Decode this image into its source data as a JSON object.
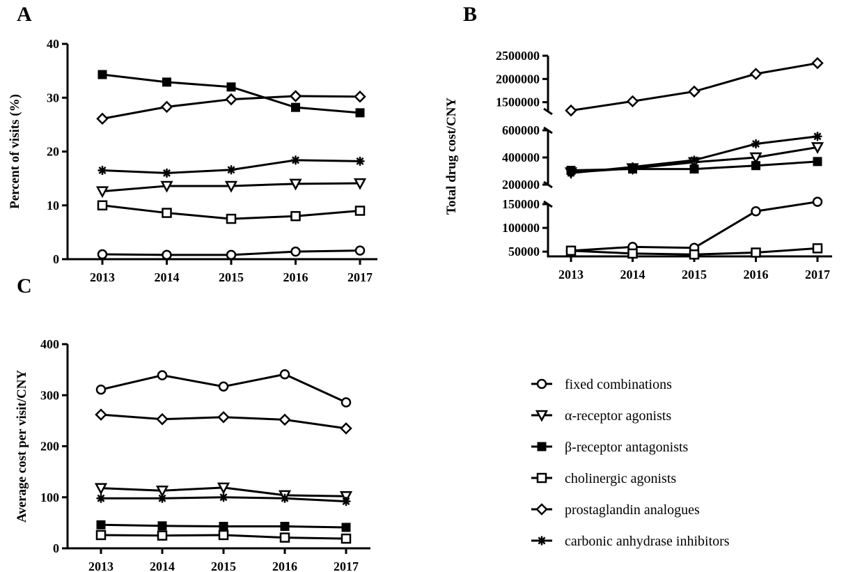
{
  "series_defs": [
    {
      "name": "fixed combinations",
      "marker": "circle-open"
    },
    {
      "name": "α-receptor agonists",
      "marker": "triangle-down-open"
    },
    {
      "name": "β-receptor antagonists",
      "marker": "square-filled"
    },
    {
      "name": "cholinergic agonists",
      "marker": "square-open"
    },
    {
      "name": "prostaglandin analogues",
      "marker": "diamond-open"
    },
    {
      "name": "carbonic anhydrase inhibitors",
      "marker": "asterisk"
    }
  ],
  "chart_data": [
    {
      "panel": "A",
      "type": "line",
      "title": "",
      "xlabel": "",
      "ylabel": "Percent of visits (%)",
      "x": [
        "2013",
        "2014",
        "2015",
        "2016",
        "2017"
      ],
      "ylim": [
        0,
        40
      ],
      "yticks": [
        "0",
        "10",
        "20",
        "30",
        "40"
      ],
      "grid": false,
      "series": [
        {
          "name": "fixed combinations",
          "values": [
            0.9,
            0.8,
            0.8,
            1.4,
            1.6
          ]
        },
        {
          "name": "α-receptor agonists",
          "values": [
            12.6,
            13.6,
            13.6,
            14.0,
            14.1
          ]
        },
        {
          "name": "β-receptor antagonists",
          "values": [
            34.3,
            32.9,
            32.0,
            28.2,
            27.2
          ]
        },
        {
          "name": "cholinergic agonists",
          "values": [
            10.0,
            8.6,
            7.5,
            8.0,
            9.0
          ]
        },
        {
          "name": "prostaglandin analogues",
          "values": [
            26.1,
            28.3,
            29.7,
            30.3,
            30.2
          ]
        },
        {
          "name": "carbonic anhydrase inhibitors",
          "values": [
            16.5,
            16.0,
            16.6,
            18.4,
            18.2
          ]
        }
      ]
    },
    {
      "panel": "B",
      "type": "line",
      "title": "",
      "xlabel": "",
      "ylabel": "Total drug cost/CNY",
      "x": [
        "2013",
        "2014",
        "2015",
        "2016",
        "2017"
      ],
      "axis_breaks": true,
      "segments": [
        {
          "ylim": [
            1300000,
            2500000
          ],
          "yticks": [
            "1500000",
            "2000000",
            "2500000"
          ]
        },
        {
          "ylim": [
            200000,
            600000
          ],
          "yticks": [
            "200000",
            "400000",
            "600000"
          ]
        },
        {
          "ylim": [
            40000,
            150000
          ],
          "yticks": [
            "50000",
            "100000",
            "150000"
          ]
        }
      ],
      "grid": false,
      "series": [
        {
          "name": "fixed combinations",
          "values": [
            52000,
            60000,
            58000,
            135000,
            155000
          ]
        },
        {
          "name": "α-receptor agonists",
          "values": [
            290000,
            320000,
            365000,
            400000,
            475000
          ]
        },
        {
          "name": "β-receptor antagonists",
          "values": [
            305000,
            315000,
            315000,
            340000,
            370000
          ]
        },
        {
          "name": "cholinergic agonists",
          "values": [
            52000,
            46000,
            44000,
            48000,
            57000
          ]
        },
        {
          "name": "prostaglandin analogues",
          "values": [
            1320000,
            1520000,
            1730000,
            2110000,
            2340000
          ]
        },
        {
          "name": "carbonic anhydrase inhibitors",
          "values": [
            285000,
            330000,
            380000,
            500000,
            555000
          ]
        }
      ]
    },
    {
      "panel": "C",
      "type": "line",
      "title": "",
      "xlabel": "",
      "ylabel": "Average cost per visit/CNY",
      "x": [
        "2013",
        "2014",
        "2015",
        "2016",
        "2017"
      ],
      "ylim": [
        0,
        400
      ],
      "yticks": [
        "0",
        "100",
        "200",
        "300",
        "400"
      ],
      "grid": false,
      "series": [
        {
          "name": "fixed combinations",
          "values": [
            311,
            339,
            317,
            341,
            286
          ]
        },
        {
          "name": "α-receptor agonists",
          "values": [
            118,
            113,
            119,
            104,
            102
          ]
        },
        {
          "name": "β-receptor antagonists",
          "values": [
            46,
            44,
            43,
            43,
            41
          ]
        },
        {
          "name": "cholinergic agonists",
          "values": [
            26,
            25,
            26,
            21,
            19
          ]
        },
        {
          "name": "prostaglandin analogues",
          "values": [
            262,
            253,
            257,
            252,
            235
          ]
        },
        {
          "name": "carbonic anhydrase inhibitors",
          "values": [
            98,
            98,
            100,
            98,
            92
          ]
        }
      ]
    }
  ]
}
